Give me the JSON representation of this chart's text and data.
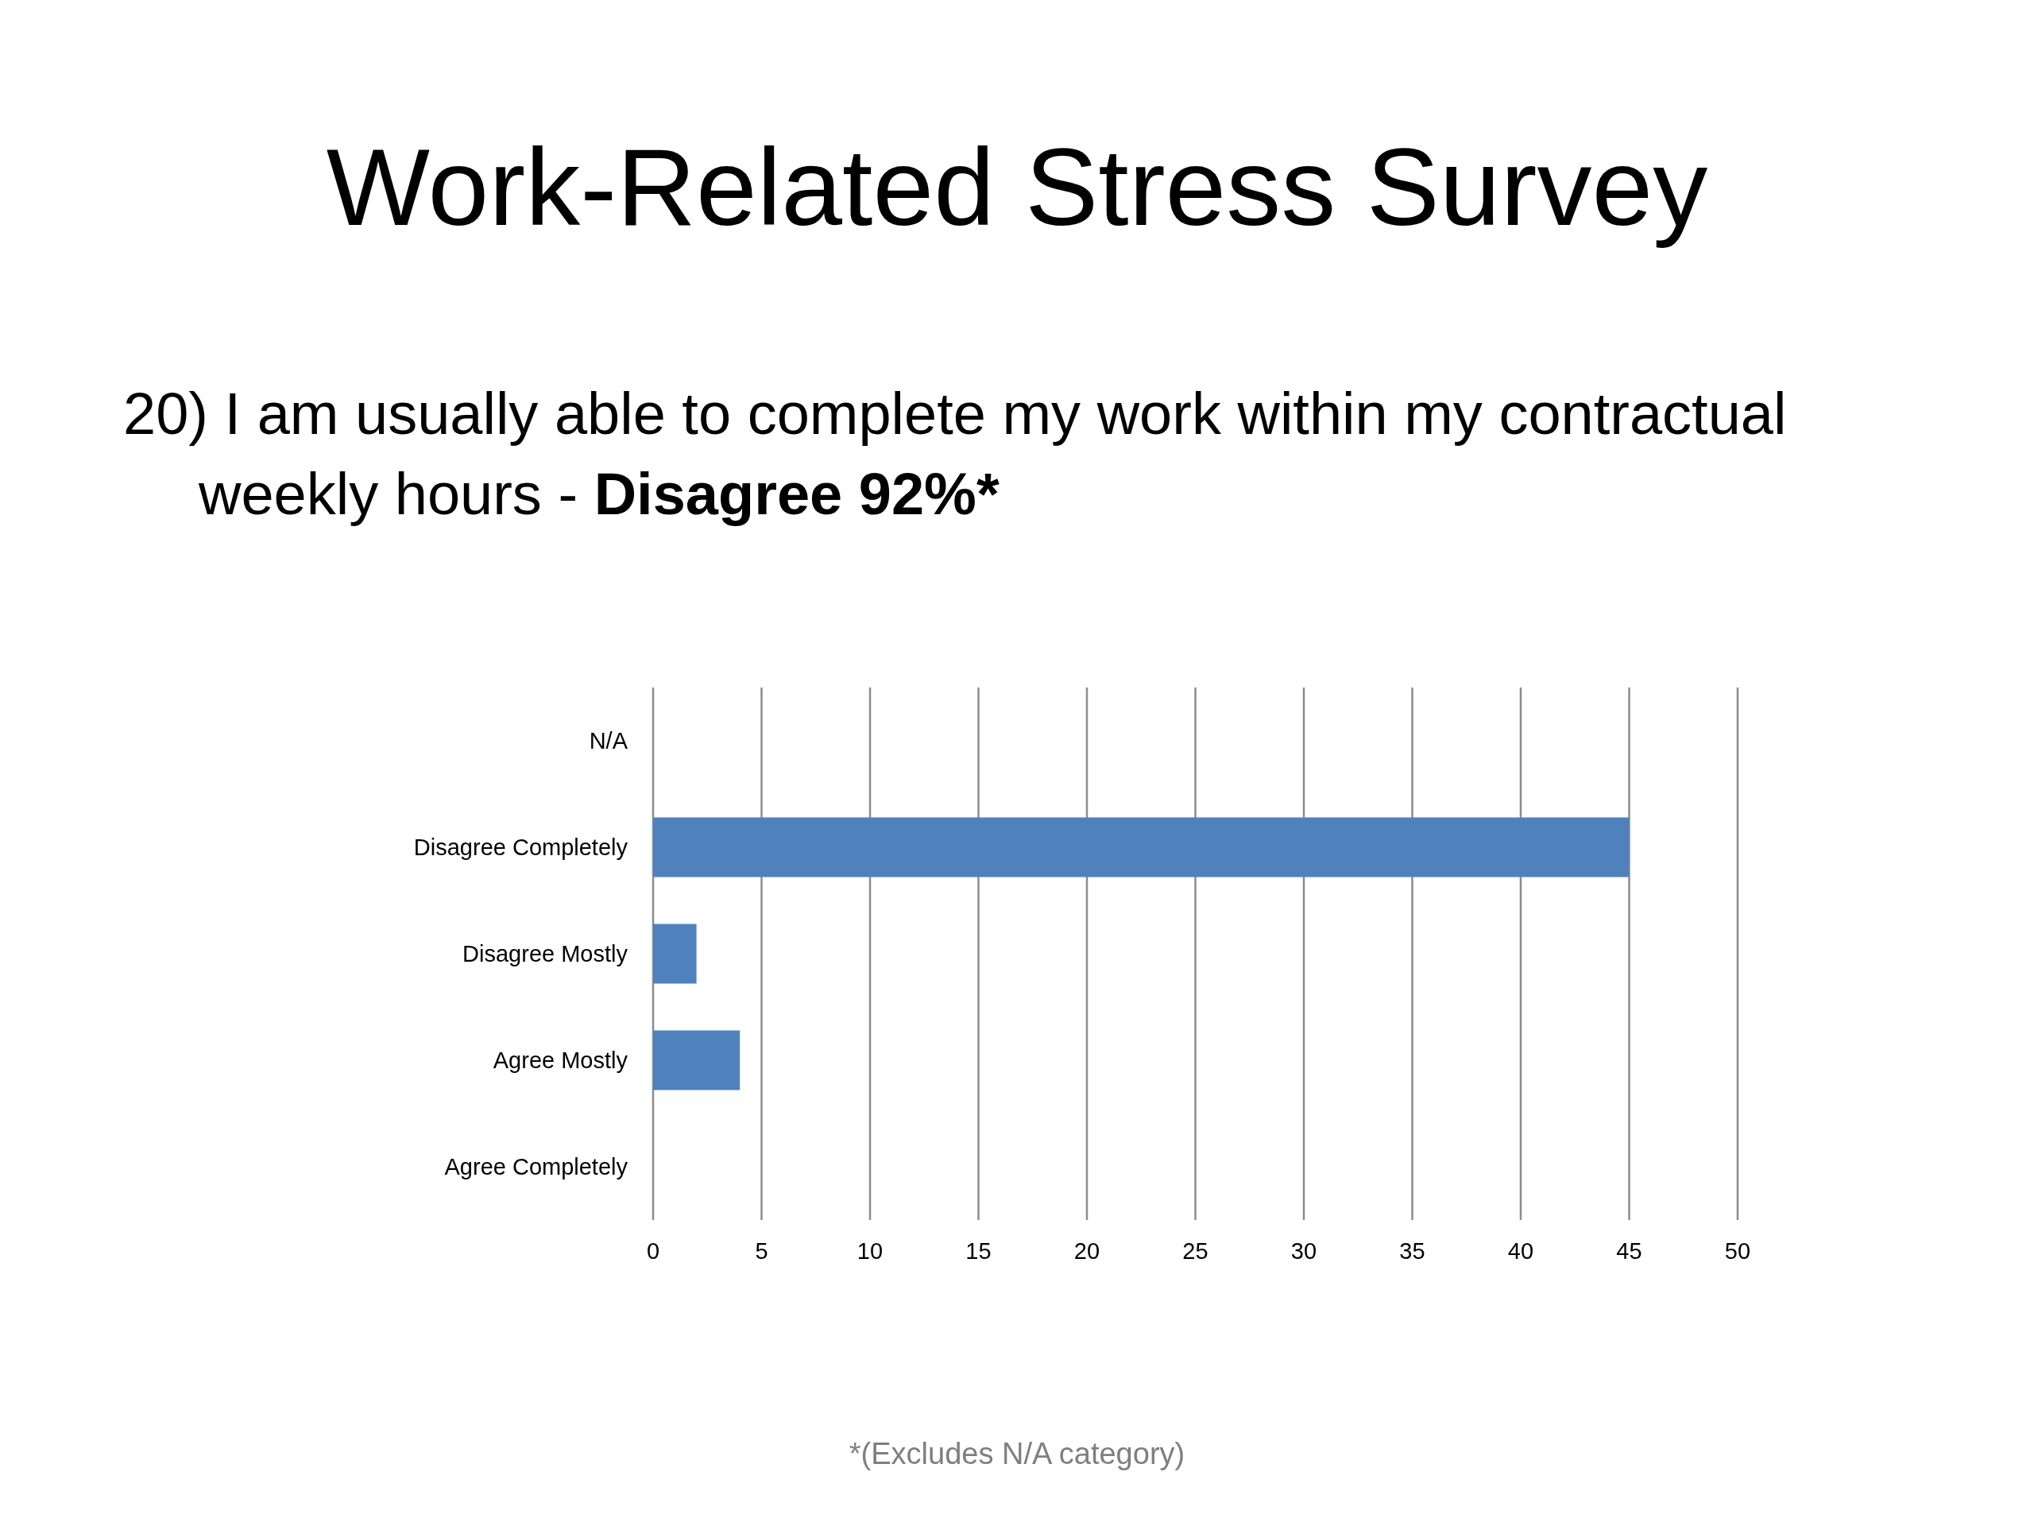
{
  "chart_data": {
    "type": "bar",
    "orientation": "horizontal",
    "title": "Work-Related Stress Survey",
    "subtitle": "20) I am usually able to complete my work within my contractual weekly hours - Disagree 92%*",
    "categories": [
      "N/A",
      "Disagree Completely",
      "Disagree Mostly",
      "Agree Mostly",
      "Agree Completely"
    ],
    "values": [
      0,
      45,
      2,
      4,
      0
    ],
    "color": "#4f81bd",
    "xlim": [
      0,
      50
    ],
    "xticks": [
      0,
      5,
      10,
      15,
      20,
      25,
      30,
      35,
      40,
      45,
      50
    ],
    "grid": "x",
    "annotations": [
      "*(Excludes N/A category)"
    ]
  }
}
